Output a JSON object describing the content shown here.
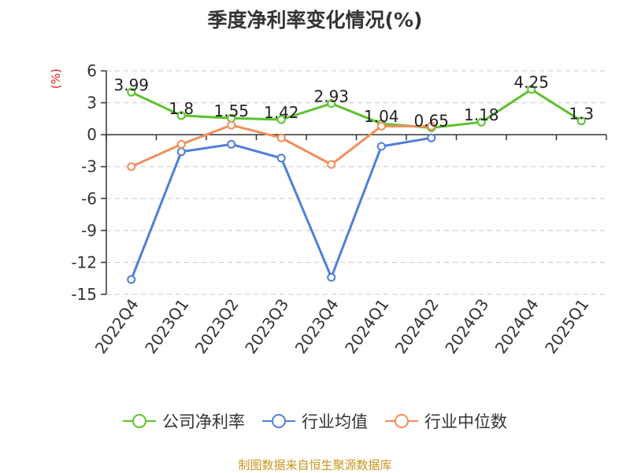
{
  "chart_data": {
    "type": "line",
    "title": "季度净利率变化情况(%)",
    "unit_label": "(%)",
    "categories": [
      "2022Q4",
      "2023Q1",
      "2023Q2",
      "2023Q3",
      "2023Q4",
      "2024Q1",
      "2024Q2",
      "2024Q3",
      "2024Q4",
      "2025Q1"
    ],
    "ylim": [
      -15,
      6
    ],
    "yticks": [
      6,
      3,
      0,
      -3,
      -6,
      -9,
      -12,
      -15
    ],
    "grid": true,
    "legend_position": "bottom",
    "series": [
      {
        "name": "公司净利率",
        "color": "#5cc22e",
        "values": [
          3.99,
          1.8,
          1.55,
          1.42,
          2.93,
          1.04,
          0.65,
          1.18,
          4.25,
          1.3
        ],
        "labels": [
          "3.99",
          "1.8",
          "1.55",
          "1.42",
          "2.93",
          "1.04",
          "0.65",
          "1.18",
          "4.25",
          "1.3"
        ]
      },
      {
        "name": "行业均值",
        "color": "#4e7fd8",
        "values": [
          -13.6,
          -1.6,
          -0.9,
          -2.2,
          -13.4,
          -1.1,
          -0.3,
          null,
          null,
          null
        ]
      },
      {
        "name": "行业中位数",
        "color": "#f28e5a",
        "values": [
          -3.0,
          -0.9,
          0.9,
          -0.3,
          -2.8,
          0.8,
          0.8,
          null,
          null,
          null
        ]
      }
    ]
  },
  "source_note": "制图数据来自恒生聚源数据库"
}
